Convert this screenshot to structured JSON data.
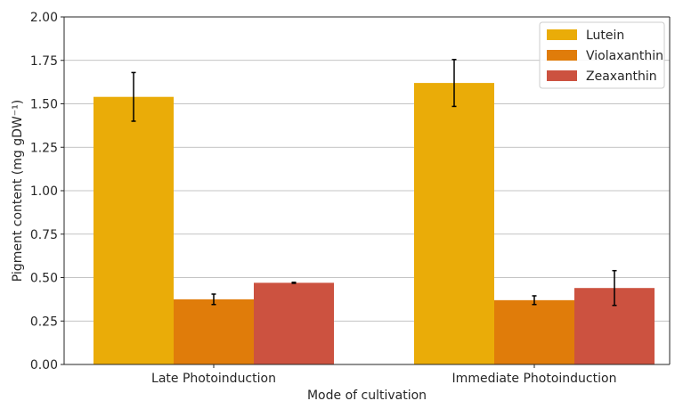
{
  "chart_data": {
    "type": "bar",
    "categories": [
      "Late Photoinduction",
      "Immediate Photoinduction"
    ],
    "series": [
      {
        "name": "Lutein",
        "color": "#EAAC08",
        "values": [
          1.54,
          1.62
        ],
        "errors": [
          0.14,
          0.135
        ]
      },
      {
        "name": "Violaxanthin",
        "color": "#E07C0A",
        "values": [
          0.375,
          0.37
        ],
        "errors": [
          0.03,
          0.025
        ]
      },
      {
        "name": "Zeaxanthin",
        "color": "#CC5240",
        "values": [
          0.47,
          0.44
        ],
        "errors": [
          0.003,
          0.1
        ]
      }
    ],
    "xlabel": "Mode of cultivation",
    "ylabel": "Pigment content (mg gDW⁻¹)",
    "ylim": [
      0,
      2.0
    ],
    "yticks": [
      "0.00",
      "0.25",
      "0.50",
      "0.75",
      "1.00",
      "1.25",
      "1.50",
      "1.75",
      "2.00"
    ],
    "grid": "horizontal",
    "legend_position": "top-right"
  }
}
